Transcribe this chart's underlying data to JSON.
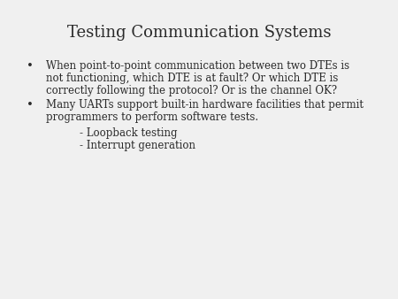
{
  "title": "Testing Communication Systems",
  "title_fontsize": 13,
  "title_font": "serif",
  "background_color": "#f0f0f0",
  "text_color": "#2a2a2a",
  "bullet1_line1": "When point-to-point communication between two DTEs is",
  "bullet1_line2": "not functioning, which DTE is at fault? Or which DTE is",
  "bullet1_line3": "correctly following the protocol? Or is the channel OK?",
  "bullet2_line1": "Many UARTs support built-in hardware facilities that permit",
  "bullet2_line2": "programmers to perform software tests.",
  "sub1": "- Loopback testing",
  "sub2": "- Interrupt generation",
  "body_fontsize": 8.5,
  "sub_fontsize": 8.5,
  "bullet_fontsize": 9.5
}
